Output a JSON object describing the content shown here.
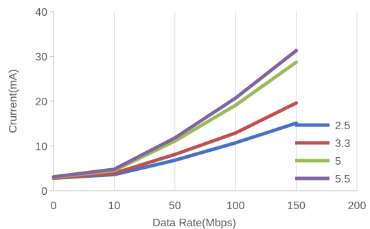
{
  "chart_data": {
    "type": "line",
    "title": "",
    "xlabel": "Data Rate(Mbps)",
    "ylabel": "Crurrent(mA)",
    "x_tick_labels": [
      "0",
      "10",
      "50",
      "100",
      "150",
      "200"
    ],
    "categories": [
      "0",
      "10",
      "50",
      "100",
      "150"
    ],
    "y_ticks": [
      0,
      10,
      20,
      30,
      40
    ],
    "ylim": [
      0,
      40
    ],
    "grid": "vertical",
    "legend_position": "right",
    "series": [
      {
        "name": "2.5",
        "color": "#4472C4",
        "values": [
          2.8,
          3.6,
          6.8,
          10.7,
          15.1
        ]
      },
      {
        "name": "3.3",
        "color": "#C0504D",
        "values": [
          2.8,
          3.9,
          8.1,
          12.9,
          19.6
        ]
      },
      {
        "name": "5",
        "color": "#9BBB59",
        "values": [
          3.0,
          4.5,
          11.1,
          19.1,
          28.7
        ]
      },
      {
        "name": "5.5",
        "color": "#8064A2",
        "values": [
          3.1,
          4.8,
          11.8,
          20.7,
          31.3
        ]
      }
    ]
  }
}
